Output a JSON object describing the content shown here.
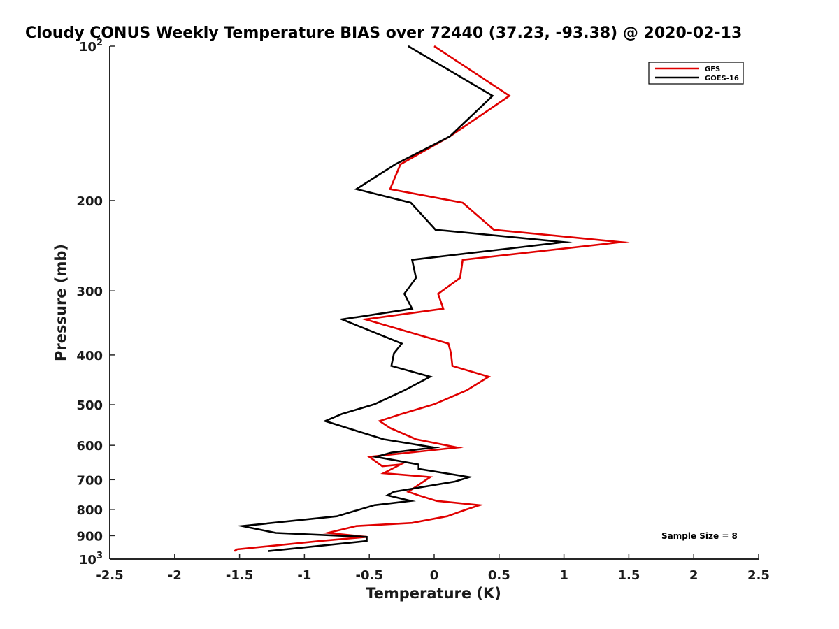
{
  "colors": {
    "gfs": "#e00000",
    "goes": "#000000",
    "axis": "#262626"
  },
  "chart_data": {
    "type": "line",
    "title": "Cloudy CONUS Weekly Temperature BIAS over 72440 (37.23, -93.38) @ 2020-02-13",
    "xlabel": "Temperature (K)",
    "ylabel": "Pressure (mb)",
    "xlim": [
      -2.5,
      2.5
    ],
    "ylim": [
      100,
      1000
    ],
    "yscale": "log",
    "y_reversed": true,
    "grid": false,
    "legend_position": "top-right",
    "annotation": "Sample Size = 8",
    "xticks": [
      {
        "value": -2.5,
        "label": "-2.5"
      },
      {
        "value": -2,
        "label": "-2"
      },
      {
        "value": -1.5,
        "label": "-1.5"
      },
      {
        "value": -1,
        "label": "-1"
      },
      {
        "value": -0.5,
        "label": "-0.5"
      },
      {
        "value": 0,
        "label": "0"
      },
      {
        "value": 0.5,
        "label": "0.5"
      },
      {
        "value": 1,
        "label": "1"
      },
      {
        "value": 1.5,
        "label": "1.5"
      },
      {
        "value": 2,
        "label": "2"
      },
      {
        "value": 2.5,
        "label": "2.5"
      }
    ],
    "yticks": [
      {
        "value": 100,
        "base": "10",
        "exp": "2"
      },
      {
        "value": 200,
        "label": "200"
      },
      {
        "value": 300,
        "label": "300"
      },
      {
        "value": 400,
        "label": "400"
      },
      {
        "value": 500,
        "label": "500"
      },
      {
        "value": 600,
        "label": "600"
      },
      {
        "value": 700,
        "label": "700"
      },
      {
        "value": 800,
        "label": "800"
      },
      {
        "value": 900,
        "label": "900"
      },
      {
        "value": 1000,
        "base": "10",
        "exp": "3"
      }
    ],
    "series": [
      {
        "name": "GFS",
        "color": "#e00000",
        "points": [
          [
            0.0,
            100
          ],
          [
            0.58,
            125
          ],
          [
            0.12,
            150
          ],
          [
            -0.26,
            170
          ],
          [
            -0.34,
            190
          ],
          [
            0.22,
            202
          ],
          [
            0.46,
            228
          ],
          [
            1.44,
            241
          ],
          [
            0.22,
            261
          ],
          [
            0.2,
            283
          ],
          [
            0.03,
            304
          ],
          [
            0.07,
            325
          ],
          [
            -0.53,
            341
          ],
          [
            0.11,
            380
          ],
          [
            0.13,
            397
          ],
          [
            0.14,
            420
          ],
          [
            0.42,
            441
          ],
          [
            0.25,
            469
          ],
          [
            0.0,
            499
          ],
          [
            -0.25,
            521
          ],
          [
            -0.42,
            538
          ],
          [
            -0.34,
            555
          ],
          [
            -0.14,
            584
          ],
          [
            0.18,
            606
          ],
          [
            -0.5,
            632
          ],
          [
            -0.4,
            659
          ],
          [
            -0.26,
            654
          ],
          [
            -0.39,
            680
          ],
          [
            -0.03,
            692
          ],
          [
            -0.2,
            739
          ],
          [
            -0.12,
            751
          ],
          [
            0.02,
            770
          ],
          [
            0.35,
            785
          ],
          [
            0.25,
            800
          ],
          [
            0.1,
            825
          ],
          [
            -0.17,
            850
          ],
          [
            -0.6,
            862
          ],
          [
            -0.82,
            889
          ],
          [
            -0.52,
            905
          ],
          [
            -0.88,
            922
          ],
          [
            -1.52,
            957
          ],
          [
            -1.54,
            965
          ]
        ]
      },
      {
        "name": "GOES-16",
        "color": "#000000",
        "points": [
          [
            -0.2,
            100
          ],
          [
            0.45,
            125
          ],
          [
            0.12,
            150
          ],
          [
            -0.3,
            170
          ],
          [
            -0.6,
            190
          ],
          [
            -0.18,
            202
          ],
          [
            0.01,
            228
          ],
          [
            1.0,
            241
          ],
          [
            -0.17,
            261
          ],
          [
            -0.14,
            283
          ],
          [
            -0.23,
            304
          ],
          [
            -0.17,
            325
          ],
          [
            -0.71,
            341
          ],
          [
            -0.25,
            380
          ],
          [
            -0.31,
            397
          ],
          [
            -0.33,
            420
          ],
          [
            -0.03,
            441
          ],
          [
            -0.23,
            469
          ],
          [
            -0.46,
            499
          ],
          [
            -0.71,
            521
          ],
          [
            -0.84,
            538
          ],
          [
            -0.67,
            555
          ],
          [
            -0.39,
            584
          ],
          [
            0.0,
            606
          ],
          [
            -0.33,
            620
          ],
          [
            -0.45,
            632
          ],
          [
            -0.12,
            654
          ],
          [
            -0.12,
            667
          ],
          [
            0.27,
            692
          ],
          [
            0.16,
            706
          ],
          [
            -0.31,
            739
          ],
          [
            -0.36,
            751
          ],
          [
            -0.18,
            770
          ],
          [
            -0.46,
            785
          ],
          [
            -0.75,
            825
          ],
          [
            -1.48,
            862
          ],
          [
            -1.22,
            889
          ],
          [
            -0.52,
            905
          ],
          [
            -0.52,
            922
          ],
          [
            -1.28,
            965
          ]
        ]
      }
    ]
  }
}
